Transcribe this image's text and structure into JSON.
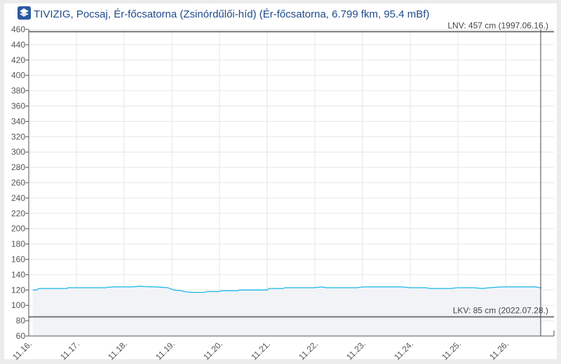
{
  "chart_data": {
    "type": "area",
    "title": "TIVIZIG, Pocsaj, Ér-főcsatorna (Zsinórdűlői-híd) (Ér-főcsatorna, 6.799 fkm, 95.4 mBf)",
    "xlabel": "",
    "ylabel": "",
    "ylim": [
      60,
      460
    ],
    "yticks": [
      "460",
      "440",
      "420",
      "400",
      "380",
      "360",
      "340",
      "320",
      "300",
      "280",
      "260",
      "240",
      "220",
      "200",
      "180",
      "160",
      "140",
      "120",
      "100",
      "80",
      "60"
    ],
    "xticks": [
      "11.16.",
      "11.17.",
      "11.18.",
      "11.19.",
      "11.20.",
      "11.21.",
      "11.22.",
      "11.23.",
      "11.24.",
      "11.25.",
      "11.26."
    ],
    "grid": true,
    "line_color": "#1ab8e8",
    "fill_color": "#f1f3f7",
    "series": [
      {
        "x": [
          "11.16 02:00",
          "11.16 04:00",
          "11.16 05:00",
          "11.16 19:00",
          "11.16 20:00",
          "11.17 15:00",
          "11.17 16:00",
          "11.17 17:00",
          "11.17 18:00",
          "11.18 04:00",
          "11.18 08:00",
          "11.18 10:00",
          "11.18 16:00",
          "11.18 22:00",
          "11.19 00:00",
          "11.19 01:00",
          "11.19 05:00",
          "11.19 06:00",
          "11.19 10:00",
          "11.19 16:00",
          "11.19 18:00",
          "11.20 00:00",
          "11.20 01:00",
          "11.20 09:00",
          "11.20 10:00",
          "11.21 00:00",
          "11.21 01:00",
          "11.21 08:00",
          "11.21 09:00",
          "11.22 00:00",
          "11.22 03:00",
          "11.22 06:00",
          "11.22 21:00",
          "11.23 00:00",
          "11.23 20:00",
          "11.24 00:00",
          "11.24 08:00",
          "11.24 10:00",
          "11.24 20:00",
          "11.25 00:00",
          "11.25 08:00",
          "11.25 12:00",
          "11.25 16:00",
          "11.25 22:00",
          "11.26 00:00",
          "11.26 15:00",
          "11.26 17:00",
          "11.26 18:00"
        ],
        "values": [
          120,
          120,
          122,
          122,
          123,
          123,
          124,
          123.5,
          124,
          124,
          125,
          124.5,
          124,
          123,
          121,
          120,
          119,
          118,
          117,
          117,
          118,
          118,
          119,
          119,
          120,
          120,
          122,
          122,
          123,
          123,
          124,
          123,
          123,
          124,
          124,
          123,
          123,
          122,
          122,
          123,
          123,
          122,
          123,
          124,
          124,
          124,
          123,
          123
        ]
      }
    ],
    "reference_lines": [
      {
        "label": "LNV: 457 cm (1997.06.16.)",
        "value": 457
      },
      {
        "label": "LKV: 85 cm (2022.07.28.)",
        "value": 85
      }
    ],
    "current_time_marker": "11.26 18:00"
  },
  "header": {
    "logo_icon": "tivizig-logo-icon"
  }
}
